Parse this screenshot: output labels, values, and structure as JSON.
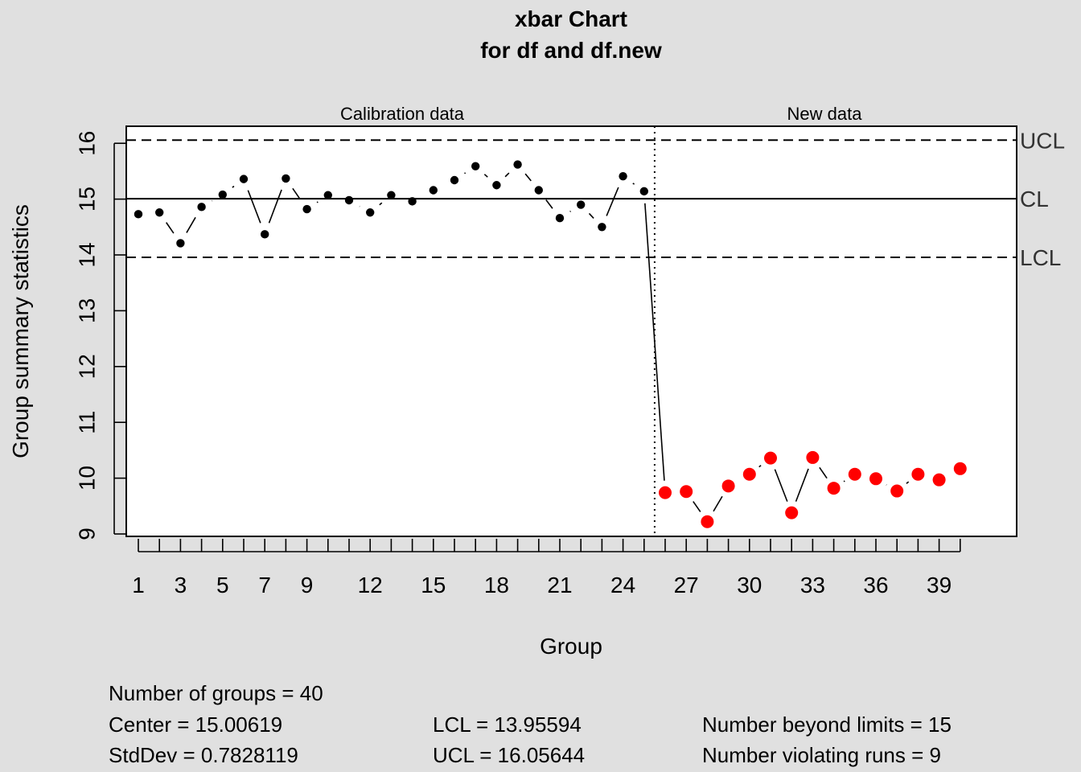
{
  "chart_data": {
    "type": "scatter",
    "title": "xbar Chart",
    "subtitle": "for df and df.new",
    "xlabel": "Group",
    "ylabel": "Group summary statistics",
    "ylim": [
      9,
      16.3
    ],
    "xlim": [
      0,
      41
    ],
    "yticks": [
      9,
      10,
      11,
      12,
      13,
      14,
      15,
      16
    ],
    "xtick_labels": [
      1,
      3,
      5,
      7,
      9,
      12,
      15,
      18,
      21,
      24,
      27,
      30,
      33,
      36,
      39
    ],
    "section_labels": {
      "calibration": "Calibration data",
      "new": "New data"
    },
    "limit_labels": {
      "ucl": "UCL",
      "cl": "CL",
      "lcl": "LCL"
    },
    "center": 15.00619,
    "ucl": 16.05644,
    "lcl": 13.95594,
    "split_after_group": 25,
    "calibration_colors": {
      "point": "#000000",
      "violation": "#ff0000"
    },
    "series": [
      {
        "name": "Calibration data",
        "x": [
          1,
          2,
          3,
          4,
          5,
          6,
          7,
          8,
          9,
          10,
          11,
          12,
          13,
          14,
          15,
          16,
          17,
          18,
          19,
          20,
          21,
          22,
          23,
          24,
          25
        ],
        "values": [
          14.73,
          14.76,
          14.21,
          14.86,
          15.08,
          15.36,
          14.37,
          15.37,
          14.82,
          15.07,
          14.98,
          14.76,
          15.07,
          14.96,
          15.16,
          15.34,
          15.59,
          15.25,
          15.62,
          15.16,
          14.66,
          14.9,
          14.5,
          15.41,
          15.14
        ]
      },
      {
        "name": "New data",
        "x": [
          26,
          27,
          28,
          29,
          30,
          31,
          32,
          33,
          34,
          35,
          36,
          37,
          38,
          39,
          40
        ],
        "values": [
          9.74,
          9.76,
          9.22,
          9.86,
          10.07,
          10.36,
          9.38,
          10.37,
          9.82,
          10.07,
          9.99,
          9.77,
          10.07,
          9.97,
          10.17
        ]
      }
    ]
  },
  "stats": {
    "groups": "Number of groups = 40",
    "center": "Center = 15.00619",
    "stddev": "StdDev = 0.7828119",
    "lcl": "LCL = 13.95594",
    "ucl": "UCL = 16.05644",
    "beyond": "Number beyond limits = 15",
    "runs": "Number violating runs = 9"
  }
}
